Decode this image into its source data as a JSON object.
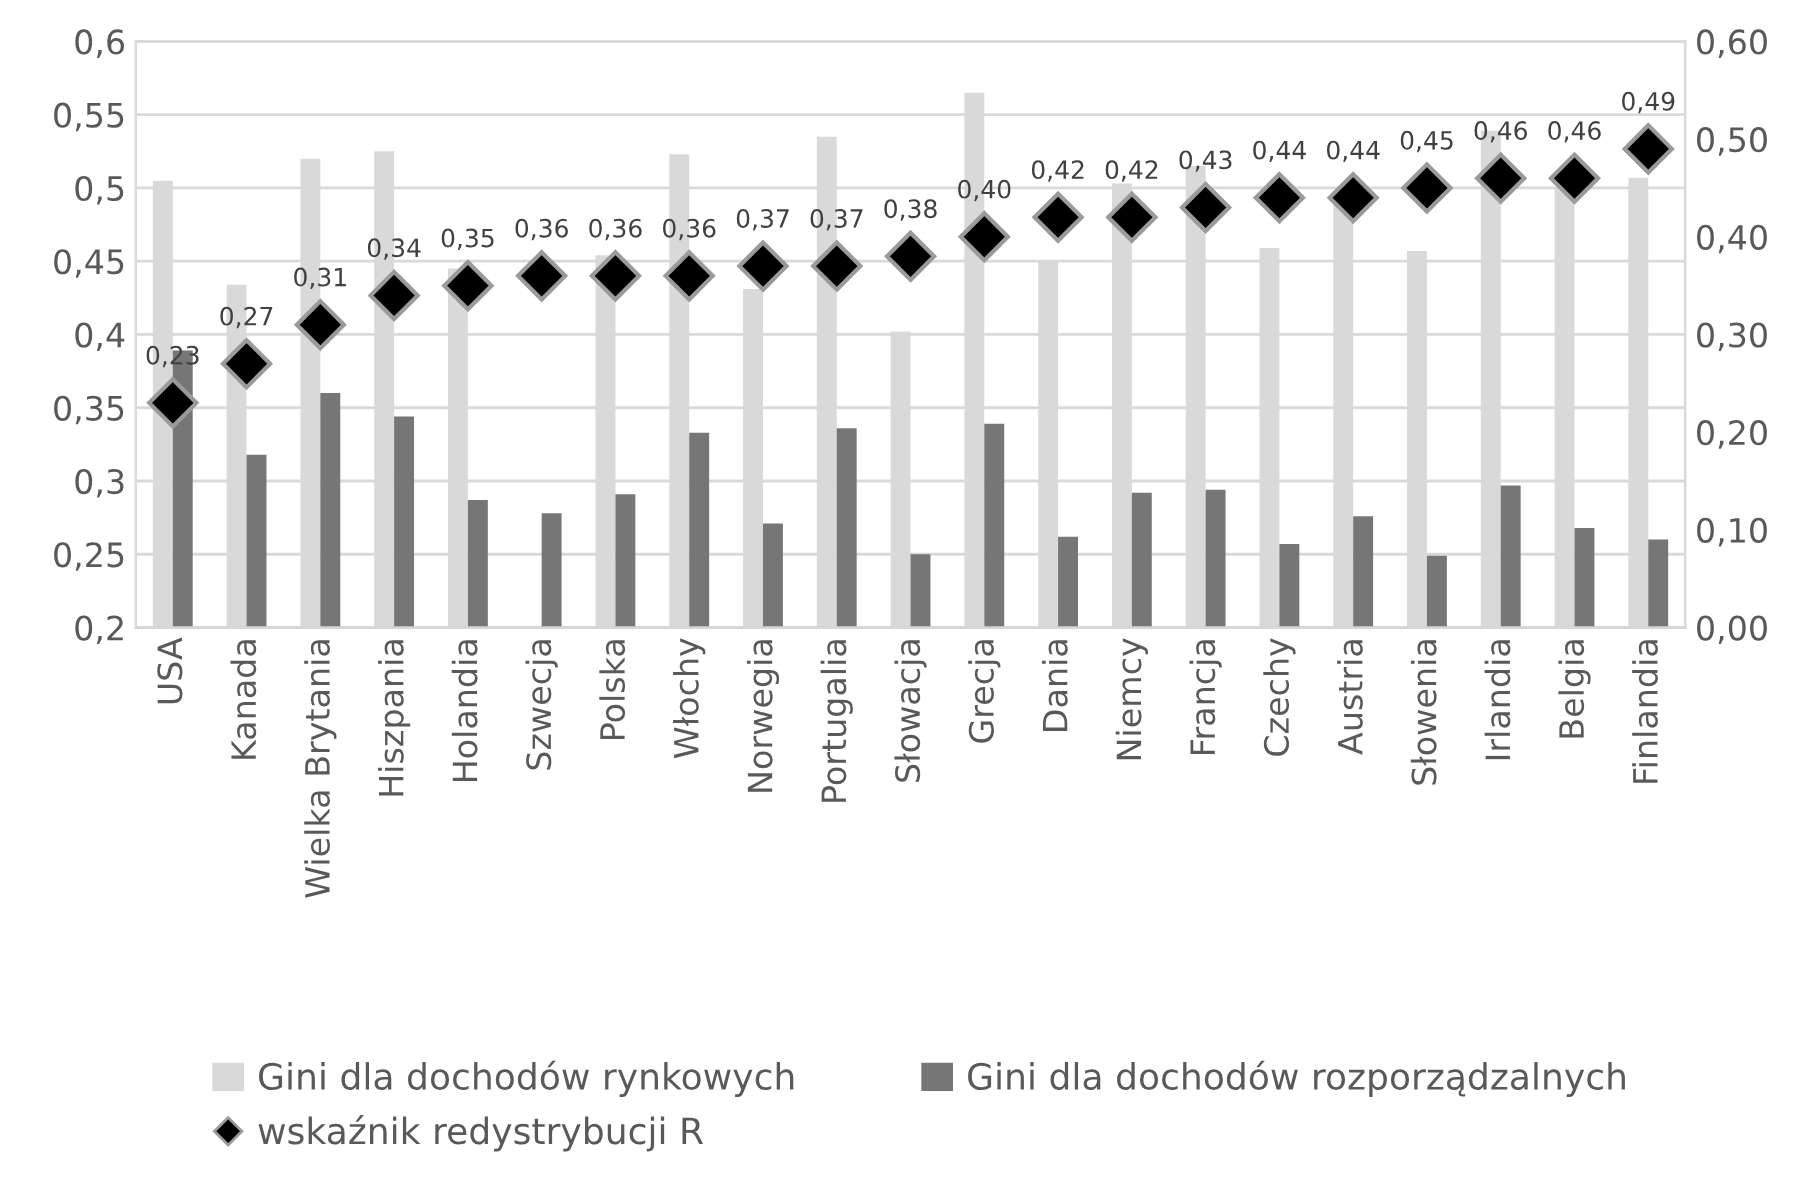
{
  "chart_data": {
    "type": "bar",
    "categories": [
      "USA",
      "Kanada",
      "Wielka Brytania",
      "Hiszpania",
      "Holandia",
      "Szwecja",
      "Polska",
      "Włochy",
      "Norwegia",
      "Portugalia",
      "Słowacja",
      "Grecja",
      "Dania",
      "Niemcy",
      "Francja",
      "Czechy",
      "Austria",
      "Słowenia",
      "Irlandia",
      "Belgia",
      "Finlandia"
    ],
    "series": [
      {
        "name": "Gini dla dochodów rynkowych",
        "color": "#d9d9d9",
        "values": [
          0.505,
          0.434,
          0.52,
          0.525,
          0.445,
          null,
          0.454,
          0.523,
          0.431,
          0.535,
          0.402,
          0.565,
          0.45,
          0.503,
          0.515,
          0.459,
          0.49,
          0.457,
          0.539,
          0.501,
          0.507
        ]
      },
      {
        "name": "Gini dla dochodów rozporządzalnych",
        "color": "#767676",
        "values": [
          0.389,
          0.318,
          0.36,
          0.344,
          0.287,
          0.278,
          0.291,
          0.333,
          0.271,
          0.336,
          0.25,
          0.339,
          0.262,
          0.292,
          0.294,
          0.257,
          0.276,
          0.249,
          0.297,
          0.268,
          0.26
        ]
      },
      {
        "name": "wskaźnik redystrybucji R",
        "type": "scatter",
        "axis": "y2",
        "color": "#000000",
        "marker": "diamond",
        "values": [
          0.23,
          0.27,
          0.31,
          0.34,
          0.35,
          0.36,
          0.36,
          0.36,
          0.37,
          0.37,
          0.38,
          0.4,
          0.42,
          0.42,
          0.43,
          0.44,
          0.44,
          0.45,
          0.46,
          0.46,
          0.49
        ],
        "value_labels": [
          "0,23",
          "0,27",
          "0,31",
          "0,34",
          "0,35",
          "0,36",
          "0,36",
          "0,36",
          "0,37",
          "0,37",
          "0,38",
          "0,40",
          "0,42",
          "0,42",
          "0,43",
          "0,44",
          "0,44",
          "0,45",
          "0,46",
          "0,46",
          "0,49"
        ]
      }
    ],
    "ylim": [
      0.2,
      0.6
    ],
    "yticks": [
      {
        "value": 0.2,
        "label": "0,2"
      },
      {
        "value": 0.25,
        "label": "0,25"
      },
      {
        "value": 0.3,
        "label": "0,3"
      },
      {
        "value": 0.35,
        "label": "0,35"
      },
      {
        "value": 0.4,
        "label": "0,4"
      },
      {
        "value": 0.45,
        "label": "0,45"
      },
      {
        "value": 0.5,
        "label": "0,5"
      },
      {
        "value": 0.55,
        "label": "0,55"
      },
      {
        "value": 0.6,
        "label": "0,6"
      }
    ],
    "y2lim": [
      0,
      0.6
    ],
    "y2ticks": [
      {
        "value": 0,
        "label": "0,00"
      },
      {
        "value": 0.1,
        "label": "0,10"
      },
      {
        "value": 0.2,
        "label": "0,20"
      },
      {
        "value": 0.3,
        "label": "0,30"
      },
      {
        "value": 0.4,
        "label": "0,40"
      },
      {
        "value": 0.5,
        "label": "0,50"
      },
      {
        "value": 0.6,
        "label": "0,60"
      }
    ],
    "grid": "y",
    "legend": "bottom"
  }
}
